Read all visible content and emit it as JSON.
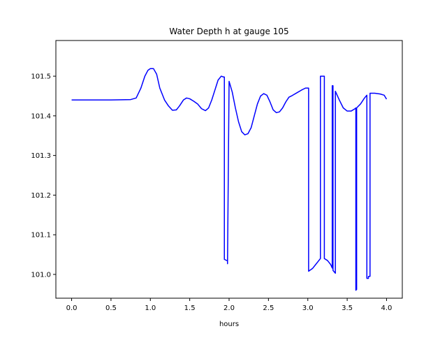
{
  "chart_data": {
    "type": "line",
    "title": "Water Depth h at gauge 105",
    "xlabel": "hours",
    "ylabel": "",
    "xlim": [
      -0.2,
      4.2
    ],
    "ylim": [
      100.94,
      101.59
    ],
    "xticks": [
      {
        "value": 0.0,
        "label": "0.0"
      },
      {
        "value": 0.5,
        "label": "0.5"
      },
      {
        "value": 1.0,
        "label": "1.0"
      },
      {
        "value": 1.5,
        "label": "1.5"
      },
      {
        "value": 2.0,
        "label": "2.0"
      },
      {
        "value": 2.5,
        "label": "2.5"
      },
      {
        "value": 3.0,
        "label": "3.0"
      },
      {
        "value": 3.5,
        "label": "3.5"
      },
      {
        "value": 4.0,
        "label": "4.0"
      }
    ],
    "yticks": [
      {
        "value": 101.0,
        "label": "101.0"
      },
      {
        "value": 101.1,
        "label": "101.1"
      },
      {
        "value": 101.2,
        "label": "101.2"
      },
      {
        "value": 101.3,
        "label": "101.3"
      },
      {
        "value": 101.4,
        "label": "101.4"
      },
      {
        "value": 101.5,
        "label": "101.5"
      }
    ],
    "grid": false,
    "legend": "none",
    "series": [
      {
        "color": "#0000ff",
        "x": [
          0.0,
          0.5,
          0.75,
          0.82,
          0.88,
          0.93,
          0.97,
          1.0,
          1.04,
          1.08,
          1.12,
          1.18,
          1.23,
          1.28,
          1.33,
          1.37,
          1.42,
          1.46,
          1.5,
          1.55,
          1.6,
          1.65,
          1.7,
          1.74,
          1.78,
          1.82,
          1.86,
          1.9,
          1.93,
          1.94,
          1.94,
          1.98,
          1.98,
          2.0,
          2.04,
          2.08,
          2.12,
          2.16,
          2.2,
          2.24,
          2.28,
          2.32,
          2.36,
          2.4,
          2.44,
          2.48,
          2.52,
          2.56,
          2.6,
          2.64,
          2.68,
          2.72,
          2.76,
          2.8,
          2.86,
          2.92,
          2.97,
          3.01,
          3.01,
          3.06,
          3.1,
          3.14,
          3.16,
          3.16,
          3.21,
          3.21,
          3.25,
          3.29,
          3.31,
          3.31,
          3.32,
          3.32,
          3.35,
          3.35,
          3.4,
          3.45,
          3.5,
          3.55,
          3.6,
          3.61,
          3.61,
          3.62,
          3.62,
          3.67,
          3.72,
          3.75,
          3.75,
          3.77,
          3.77,
          3.79,
          3.79,
          3.85,
          3.92,
          3.97,
          4.0
        ],
        "y": [
          101.44,
          101.44,
          101.441,
          101.445,
          101.47,
          101.5,
          101.515,
          101.519,
          101.519,
          101.505,
          101.47,
          101.44,
          101.425,
          101.414,
          101.415,
          101.425,
          101.44,
          101.445,
          101.443,
          101.437,
          101.43,
          101.418,
          101.413,
          101.42,
          101.44,
          101.465,
          101.49,
          101.5,
          101.498,
          101.498,
          101.038,
          101.034,
          101.027,
          101.487,
          101.46,
          101.42,
          101.385,
          101.36,
          101.352,
          101.355,
          101.37,
          101.4,
          101.43,
          101.45,
          101.456,
          101.452,
          101.435,
          101.415,
          101.408,
          101.41,
          101.42,
          101.435,
          101.447,
          101.451,
          101.458,
          101.465,
          101.47,
          101.47,
          101.008,
          101.015,
          101.025,
          101.035,
          101.04,
          101.5,
          101.5,
          101.04,
          101.035,
          101.025,
          101.016,
          101.476,
          101.476,
          101.01,
          101.003,
          101.462,
          101.44,
          101.42,
          101.412,
          101.412,
          101.418,
          101.42,
          100.96,
          100.962,
          101.42,
          101.43,
          101.445,
          101.452,
          100.99,
          100.99,
          100.995,
          100.995,
          101.457,
          101.457,
          101.455,
          101.452,
          101.442
        ]
      }
    ]
  }
}
